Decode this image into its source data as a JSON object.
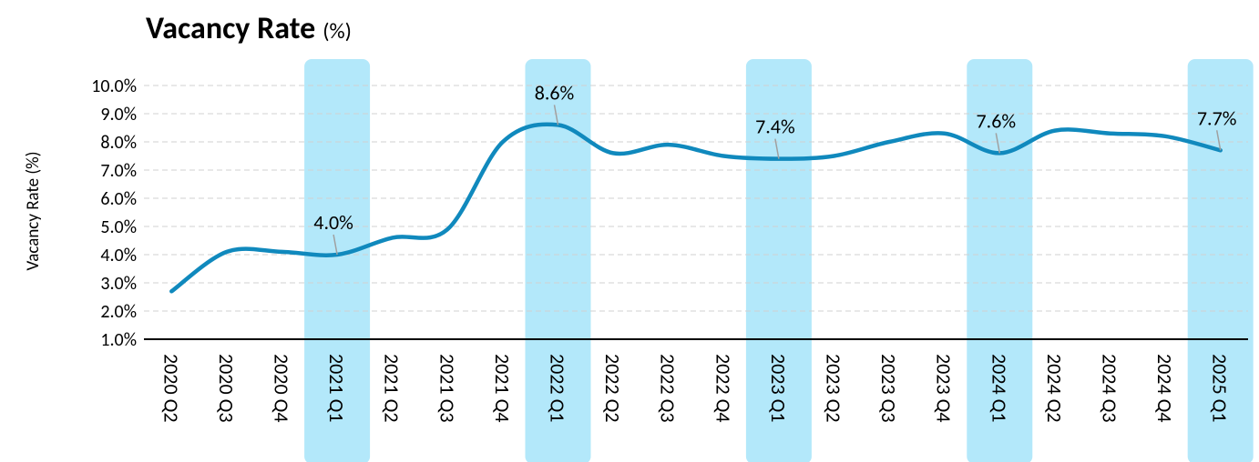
{
  "chart_data": {
    "type": "line",
    "title": "Vacancy Rate",
    "title_suffix": "(%)",
    "y_label": "Vacancy Rate (%)",
    "categories": [
      "2020 Q2",
      "2020 Q3",
      "2020 Q4",
      "2021 Q1",
      "2021 Q2",
      "2021 Q3",
      "2021 Q4",
      "2022 Q1",
      "2022 Q2",
      "2022 Q3",
      "2022 Q4",
      "2023 Q1",
      "2023 Q2",
      "2023 Q3",
      "2023 Q4",
      "2024 Q1",
      "2024 Q2",
      "2024 Q3",
      "2024 Q4",
      "2025 Q1"
    ],
    "series": [
      {
        "name": "Vacancy Rate",
        "color": "#1089bd",
        "values": [
          2.7,
          4.1,
          4.1,
          4.0,
          4.6,
          4.9,
          8.0,
          8.6,
          7.6,
          7.9,
          7.5,
          7.4,
          7.5,
          8.0,
          8.3,
          7.6,
          8.4,
          8.3,
          8.2,
          7.7
        ],
        "value_labels": [
          null,
          null,
          null,
          "4.0%",
          null,
          null,
          null,
          "8.6%",
          null,
          null,
          null,
          "7.4%",
          null,
          null,
          null,
          "7.6%",
          null,
          null,
          null,
          "7.7%"
        ]
      }
    ],
    "highlight_color": "#b3e8fa",
    "ylim": [
      1,
      11
    ],
    "yticks": [
      {
        "value": 1,
        "label": "1.0%"
      },
      {
        "value": 2,
        "label": "2.0%"
      },
      {
        "value": 3,
        "label": "3.0%"
      },
      {
        "value": 4,
        "label": "4.0%"
      },
      {
        "value": 5,
        "label": "5.0%"
      },
      {
        "value": 6,
        "label": "6.0%"
      },
      {
        "value": 7,
        "label": "7.0%"
      },
      {
        "value": 8,
        "label": "8.0%"
      },
      {
        "value": 9,
        "label": "9.0%"
      },
      {
        "value": 10,
        "label": "10.0%"
      }
    ],
    "grid": true
  }
}
